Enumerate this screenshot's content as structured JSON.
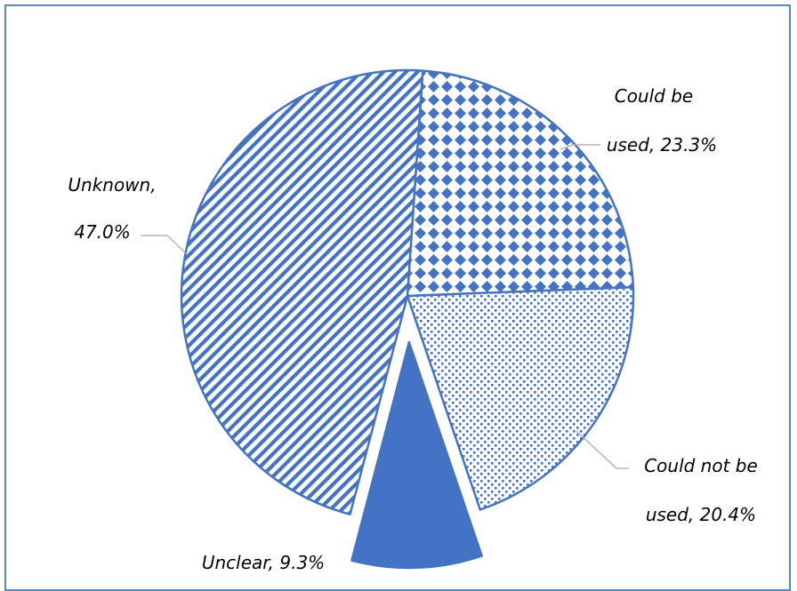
{
  "chart_data": {
    "type": "pie",
    "slices": [
      {
        "label": "Could be used",
        "value": 23.3,
        "label_lines": [
          "Could be",
          "used, 23.3%"
        ],
        "pattern": "diamonds"
      },
      {
        "label": "Could not be used",
        "value": 20.4,
        "label_lines": [
          "Could not be",
          "used, 20.4%"
        ],
        "pattern": "dots"
      },
      {
        "label": "Unclear",
        "value": 9.3,
        "label_lines": [
          "Unclear, 9.3%"
        ],
        "pattern": "solid",
        "exploded": true
      },
      {
        "label": "Unknown",
        "value": 47.0,
        "label_lines": [
          "Unknown,",
          "47.0%"
        ],
        "pattern": "diagonal-stripes"
      }
    ],
    "legend": "none",
    "colors": {
      "accent": "#4472c4",
      "border": "#5b86c6",
      "leader": "#a6a6a6"
    }
  }
}
